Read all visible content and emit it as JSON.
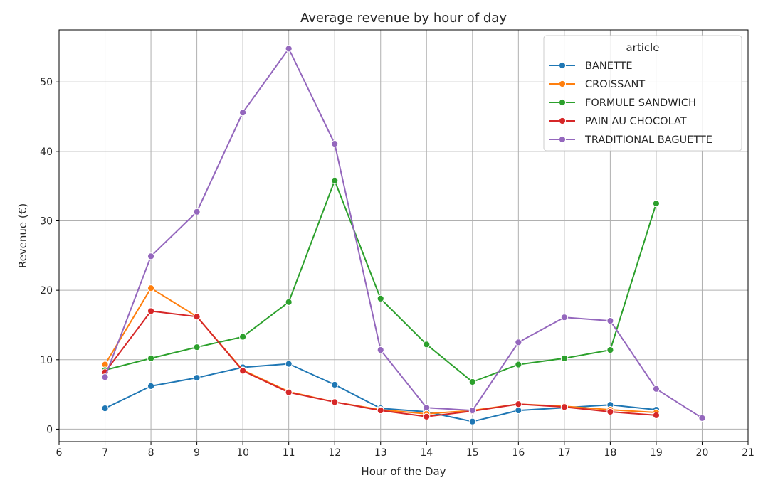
{
  "chart_data": {
    "type": "line",
    "title": "Average revenue by hour of day",
    "xlabel": "Hour of the Day",
    "ylabel": "Revenue (€)",
    "xlim": [
      6,
      21
    ],
    "ylim": [
      -1.8,
      57.5
    ],
    "xticks": [
      6,
      7,
      8,
      9,
      10,
      11,
      12,
      13,
      14,
      15,
      16,
      17,
      18,
      19,
      20,
      21
    ],
    "yticks": [
      0,
      10,
      20,
      30,
      40,
      50
    ],
    "grid": true,
    "legend": {
      "title": "article",
      "placement": "top-right"
    },
    "series": [
      {
        "name": "BANETTE",
        "color": "#1f77b4",
        "x": [
          7,
          8,
          9,
          10,
          11,
          12,
          13,
          14,
          15,
          16,
          17,
          18,
          19
        ],
        "y": [
          3.0,
          6.2,
          7.4,
          8.9,
          9.4,
          6.4,
          3.0,
          2.5,
          1.1,
          2.7,
          3.1,
          3.5,
          2.8
        ]
      },
      {
        "name": "CROISSANT",
        "color": "#ff7f0e",
        "x": [
          7,
          8,
          9,
          10,
          11,
          12,
          13,
          14,
          15,
          16,
          17,
          18,
          19
        ],
        "y": [
          9.3,
          20.3,
          16.2,
          8.5,
          5.4,
          3.9,
          2.8,
          2.2,
          2.7,
          3.6,
          3.3,
          2.8,
          2.4
        ]
      },
      {
        "name": "FORMULE SANDWICH",
        "color": "#2ca02c",
        "x": [
          7,
          8,
          9,
          10,
          11,
          12,
          13,
          14,
          15,
          16,
          17,
          18,
          19
        ],
        "y": [
          8.5,
          10.2,
          11.8,
          13.3,
          18.3,
          35.8,
          18.8,
          12.2,
          6.8,
          9.3,
          10.2,
          11.4,
          32.5
        ]
      },
      {
        "name": "PAIN AU CHOCOLAT",
        "color": "#d62728",
        "x": [
          7,
          8,
          9,
          10,
          11,
          12,
          13,
          14,
          15,
          16,
          17,
          18,
          19
        ],
        "y": [
          8.2,
          17.0,
          16.2,
          8.4,
          5.3,
          3.9,
          2.7,
          1.8,
          2.6,
          3.6,
          3.2,
          2.5,
          2.0
        ]
      },
      {
        "name": "TRADITIONAL BAGUETTE",
        "color": "#9467bd",
        "x": [
          7,
          8,
          9,
          10,
          11,
          12,
          13,
          14,
          15,
          16,
          17,
          18,
          19,
          20
        ],
        "y": [
          7.5,
          24.9,
          31.3,
          45.6,
          54.8,
          41.1,
          11.4,
          3.1,
          2.7,
          12.5,
          16.1,
          15.6,
          5.8,
          1.6
        ]
      }
    ]
  }
}
